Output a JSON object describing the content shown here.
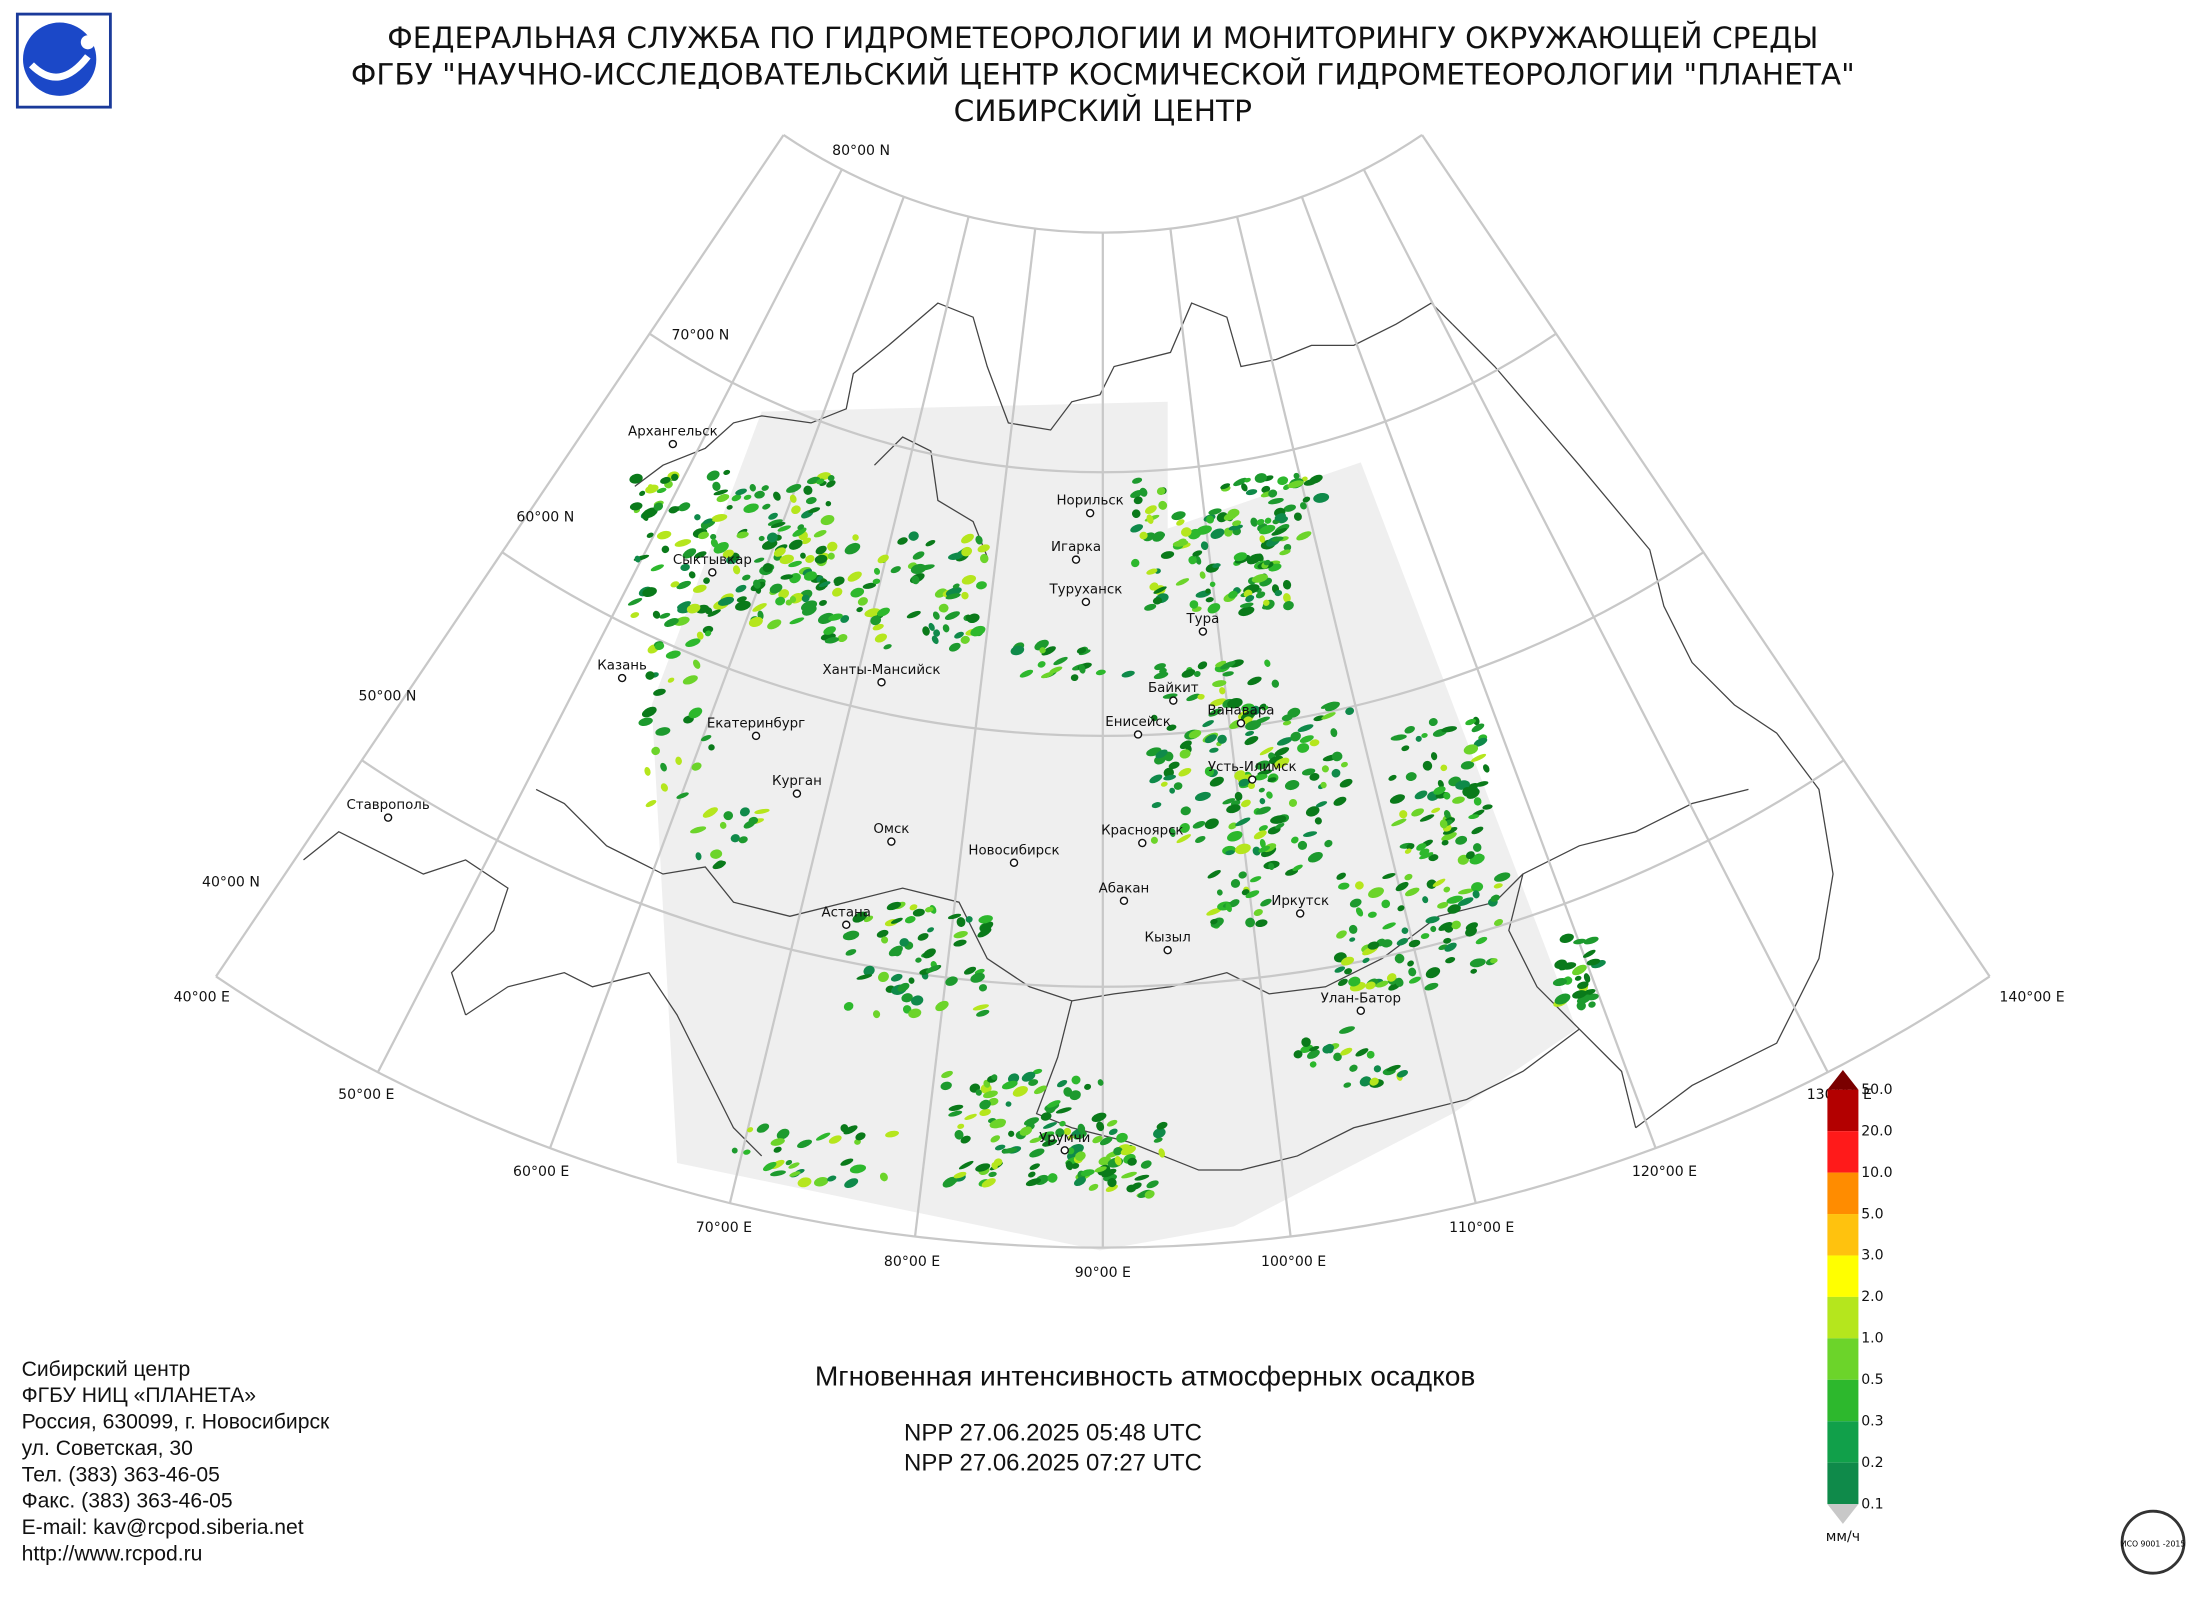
{
  "header": {
    "lines": [
      "ФЕДЕРАЛЬНАЯ СЛУЖБА ПО ГИДРОМЕТЕОРОЛОГИИ И МОНИТОРИНГУ ОКРУЖАЮЩЕЙ СРЕДЫ",
      "ФГБУ \"НАУЧНО-ИССЛЕДОВАТЕЛЬСКИЙ ЦЕНТР КОСМИЧЕСКОЙ ГИДРОМЕТЕОРОЛОГИИ \"ПЛАНЕТА\"",
      "СИБИРСКИЙ ЦЕНТР"
    ]
  },
  "map": {
    "lat_labels": [
      "80°00 N",
      "70°00 N",
      "60°00 N",
      "50°00 N",
      "40°00 N"
    ],
    "lon_labels": [
      "40°00 E",
      "50°00 E",
      "60°00 E",
      "70°00 E",
      "80°00 E",
      "90°00 E",
      "100°00 E",
      "110°00 E",
      "120°00 E",
      "130°00 E",
      "140°00 E"
    ],
    "cities": [
      "Архангельск",
      "Сыктывкар",
      "Казань",
      "Екатеринбург",
      "Ставрополь",
      "Курган",
      "Ханты-Мансийск",
      "Омск",
      "Астана",
      "Новосибирск",
      "Норильск",
      "Игарка",
      "Туруханск",
      "Тура",
      "Байкит",
      "Енисейск",
      "Ванавара",
      "Усть-Илимск",
      "Красноярск",
      "Абакан",
      "Кызыл",
      "Иркутск",
      "Улан-Батор",
      "Урумчи"
    ]
  },
  "legend": {
    "labels": [
      "50.0",
      "20.0",
      "10.0",
      "5.0",
      "3.0",
      "2.0",
      "1.0",
      "0.5",
      "0.3",
      "0.2",
      "0.1"
    ],
    "unit": "мм/ч"
  },
  "caption": {
    "title": "Мгновенная интенсивность атмосферных осадков",
    "passes": [
      "NPP 27.06.2025  05:48 UTC",
      "NPP 27.06.2025  07:27 UTC"
    ]
  },
  "footer": {
    "lines": [
      "Сибирский центр",
      "ФГБУ НИЦ «ПЛАНЕТА»",
      "Россия, 630099, г. Новосибирск",
      "ул. Советская, 30",
      "Тел. (383) 363-46-05",
      "Факс. (383) 363-46-05",
      "E-mail: kav@rcpod.siberia.net",
      "http://www.rcpod.ru"
    ]
  },
  "stamp": {
    "text": "ИСО 9001 -2015"
  }
}
